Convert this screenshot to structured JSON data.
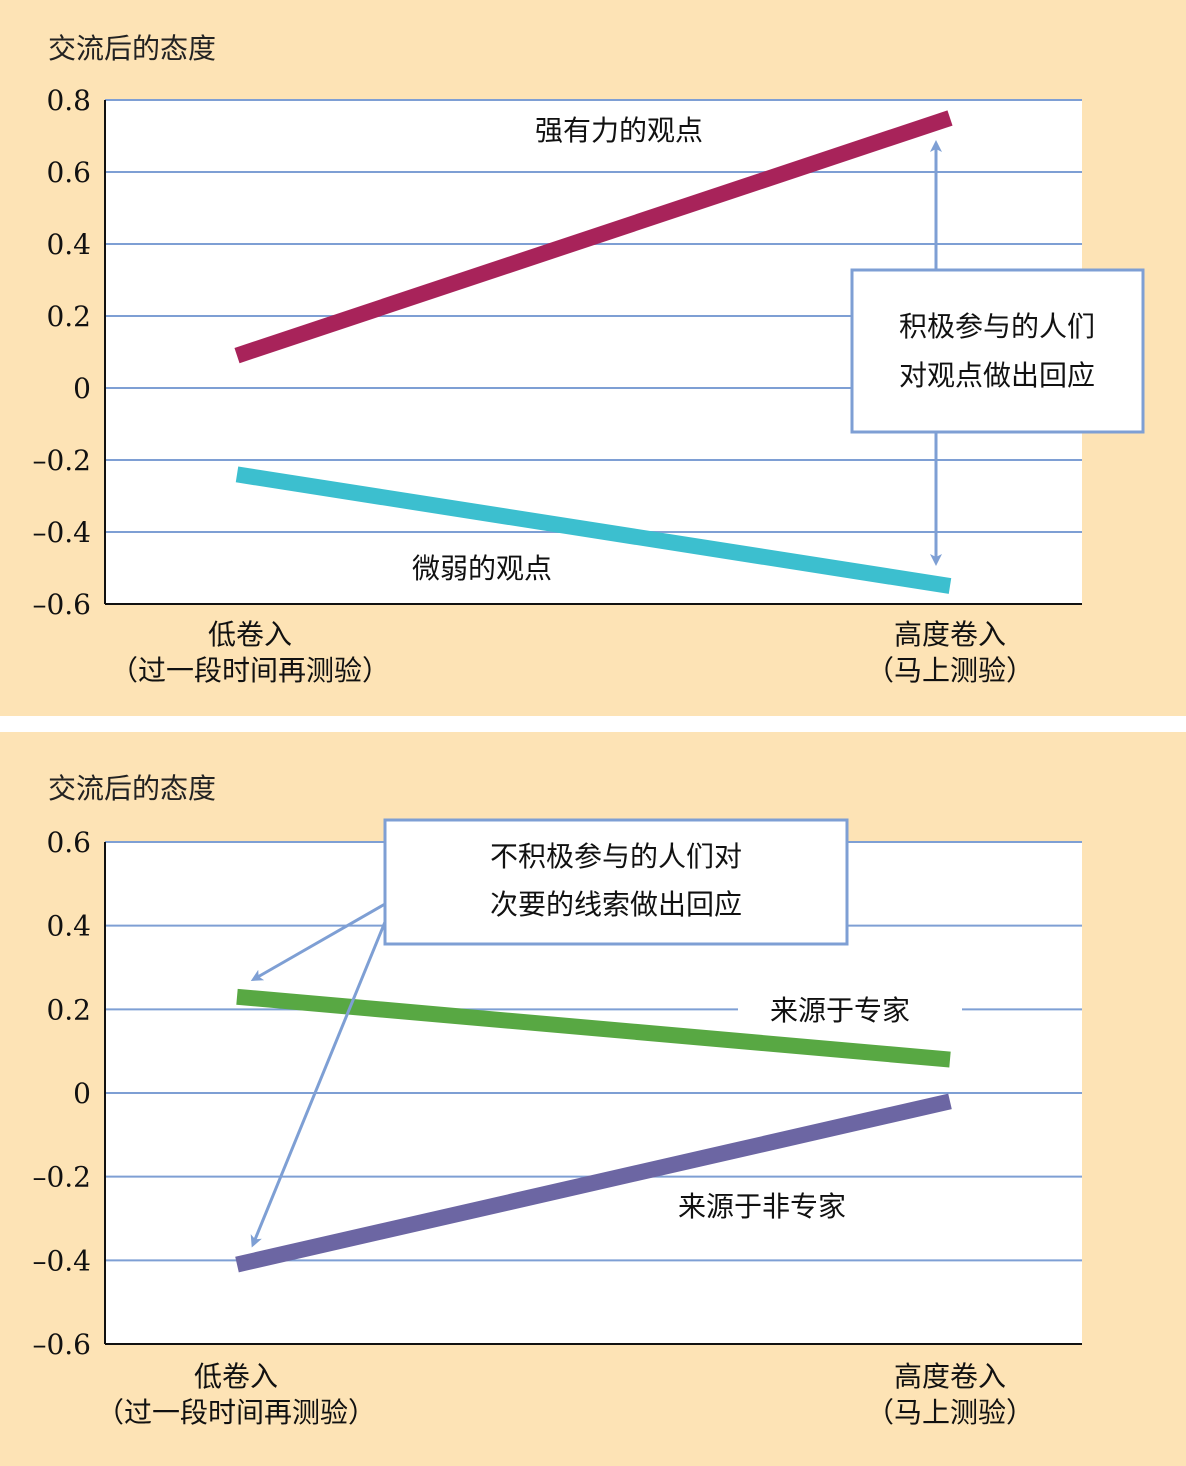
{
  "chart_data": [
    {
      "type": "line",
      "ylabel": "交流后的态度",
      "ylim": [
        -0.6,
        0.8
      ],
      "yticks": [
        "0.8",
        "0.6",
        "0.4",
        "0.2",
        "0",
        "–0.2",
        "–0.4",
        "–0.6"
      ],
      "ytick_values": [
        0.8,
        0.6,
        0.4,
        0.2,
        0,
        -0.2,
        -0.4,
        -0.6
      ],
      "categories": [
        {
          "line1": "低卷入",
          "line2": "（过一段时间再测验）"
        },
        {
          "line1": "高度卷入",
          "line2": "（马上测验）"
        }
      ],
      "grid": true,
      "series": [
        {
          "name": "强有力的观点",
          "values": [
            0.09,
            0.75
          ],
          "color": "#a8235a"
        },
        {
          "name": "微弱的观点",
          "values": [
            -0.24,
            -0.55
          ],
          "color": "#3cbfcf"
        }
      ],
      "annotation": {
        "lines": [
          "积极参与的人们",
          "对观点做出回应"
        ]
      }
    },
    {
      "type": "line",
      "ylabel": "交流后的态度",
      "ylim": [
        -0.6,
        0.6
      ],
      "yticks": [
        "0.6",
        "0.4",
        "0.2",
        "0",
        "–0.2",
        "–0.4",
        "–0.6"
      ],
      "ytick_values": [
        0.6,
        0.4,
        0.2,
        0,
        -0.2,
        -0.4,
        -0.6
      ],
      "categories": [
        {
          "line1": "低卷入",
          "line2": "（过一段时间再测验）"
        },
        {
          "line1": "高度卷入",
          "line2": "（马上测验）"
        }
      ],
      "grid": true,
      "series": [
        {
          "name": "来源于专家",
          "values": [
            0.23,
            0.08
          ],
          "color": "#58a843"
        },
        {
          "name": "来源于非专家",
          "values": [
            -0.41,
            -0.02
          ],
          "color": "#6c66a3"
        }
      ],
      "annotation": {
        "lines": [
          "不积极参与的人们对",
          "次要的线索做出回应"
        ]
      }
    }
  ],
  "colors": {
    "background": "#fde3b5",
    "plot_bg": "#ffffff",
    "grid": "#7e9fd4",
    "arrow": "#7e9fd4",
    "annotation_border": "#7e9fd4"
  }
}
